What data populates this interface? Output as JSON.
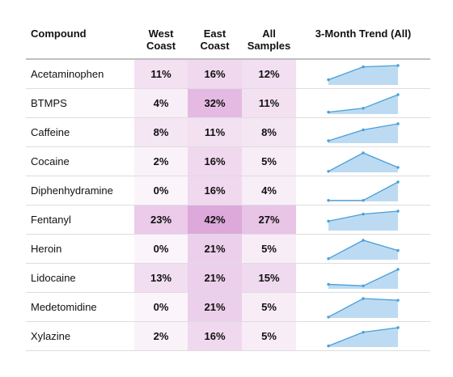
{
  "chart_data": {
    "type": "table",
    "columns": [
      {
        "key": "compound",
        "label_lines": [
          "Compound"
        ]
      },
      {
        "key": "west",
        "label_lines": [
          "West",
          "Coast"
        ]
      },
      {
        "key": "east",
        "label_lines": [
          "East",
          "Coast"
        ]
      },
      {
        "key": "all",
        "label_lines": [
          "All",
          "Samples"
        ]
      },
      {
        "key": "trend",
        "label_lines": [
          "3-Month Trend (All)"
        ]
      }
    ],
    "cell_color": "#c873c3",
    "sparkline_line_color": "#4a9fd8",
    "sparkline_fill_color": "#bcdbf3",
    "rows": [
      {
        "compound": "Acetaminophen",
        "west": 11,
        "east": 16,
        "all": 12,
        "trend": [
          4,
          14,
          15
        ]
      },
      {
        "compound": "BTMPS",
        "west": 4,
        "east": 32,
        "all": 11,
        "trend": [
          2,
          6,
          20
        ]
      },
      {
        "compound": "Caffeine",
        "west": 8,
        "east": 11,
        "all": 8,
        "trend": [
          2,
          11,
          16
        ]
      },
      {
        "compound": "Cocaine",
        "west": 2,
        "east": 16,
        "all": 5,
        "trend": [
          1,
          20,
          5
        ]
      },
      {
        "compound": "Diphenhydramine",
        "west": 0,
        "east": 16,
        "all": 4,
        "trend": [
          1,
          1,
          19
        ]
      },
      {
        "compound": "Fentanyl",
        "west": 23,
        "east": 42,
        "all": 27,
        "trend": [
          16,
          28,
          33
        ]
      },
      {
        "compound": "Heroin",
        "west": 0,
        "east": 21,
        "all": 5,
        "trend": [
          1,
          19,
          9
        ]
      },
      {
        "compound": "Lidocaine",
        "west": 13,
        "east": 21,
        "all": 15,
        "trend": [
          6,
          4,
          26
        ]
      },
      {
        "compound": "Medetomidine",
        "west": 0,
        "east": 21,
        "all": 5,
        "trend": [
          1,
          22,
          20
        ]
      },
      {
        "compound": "Xylazine",
        "west": 2,
        "east": 16,
        "all": 5,
        "trend": [
          1,
          13,
          17
        ]
      }
    ]
  }
}
